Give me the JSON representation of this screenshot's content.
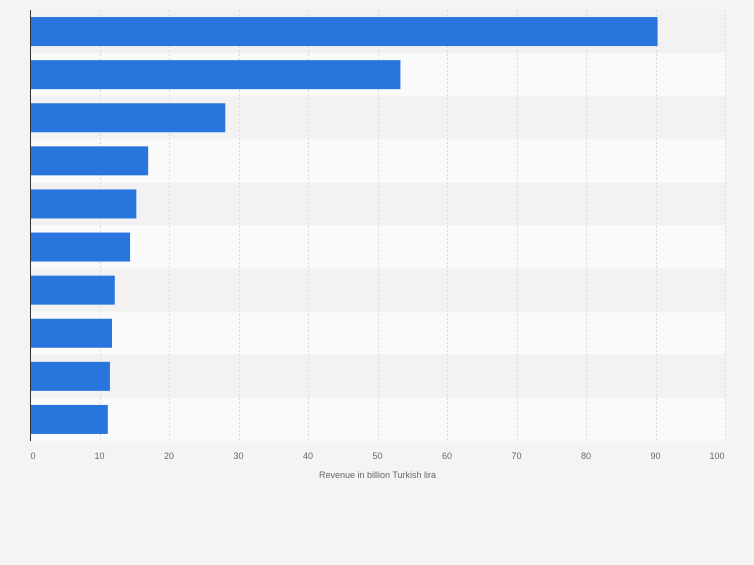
{
  "colors": {
    "page_background": "#f4f4f4",
    "band_light": "#fafafa",
    "band_dark": "#f2f2f2",
    "bar": "#2876dd",
    "gridline": "#dcdcdc",
    "axis_line": "#333333",
    "tick_text": "#666666",
    "axis_title_text": "#666666"
  },
  "chart_data": {
    "type": "bar",
    "orientation": "horizontal",
    "title": "",
    "xlabel": "Revenue in billion Turkish lira",
    "ylabel": "",
    "categories": [
      "",
      "",
      "",
      "",
      "",
      "",
      "",
      "",
      "",
      ""
    ],
    "values": [
      90.3,
      53.3,
      28.1,
      17.0,
      15.3,
      14.4,
      12.2,
      11.8,
      11.5,
      11.2
    ],
    "xlim": [
      0,
      100
    ],
    "ticks": [
      "0",
      "10",
      "20",
      "30",
      "40",
      "50",
      "60",
      "70",
      "80",
      "90",
      "100"
    ],
    "grid": true,
    "legend": "none"
  }
}
